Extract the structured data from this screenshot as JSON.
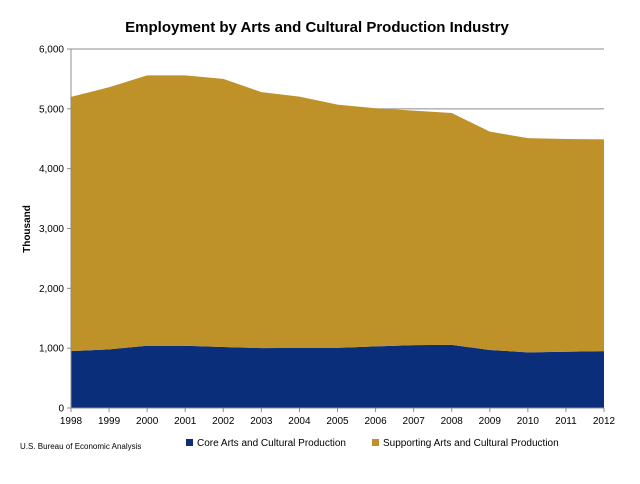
{
  "chart_data": {
    "type": "area",
    "stacked": true,
    "title": "Employment by Arts and Cultural Production Industry",
    "xlabel": "",
    "ylabel": "Thousand",
    "x": [
      "1998",
      "1999",
      "2000",
      "2001",
      "2002",
      "2003",
      "2004",
      "2005",
      "2006",
      "2007",
      "2008",
      "2009",
      "2010",
      "2011",
      "2012"
    ],
    "ylim": [
      0,
      6000
    ],
    "yticks": [
      "0",
      "1,000",
      "2,000",
      "3,000",
      "4,000",
      "5,000",
      "6,000"
    ],
    "grid": true,
    "legend_position": "bottom",
    "series": [
      {
        "name": "Core Arts and Cultural Production",
        "color": "#0b2e7a",
        "values": [
          950,
          980,
          1040,
          1040,
          1020,
          1000,
          1005,
          1005,
          1030,
          1050,
          1055,
          970,
          930,
          940,
          950
        ]
      },
      {
        "name": "Supporting Arts and Cultural Production",
        "color": "#bf9129",
        "values": [
          4250,
          4380,
          4520,
          4520,
          4480,
          4280,
          4200,
          4065,
          3980,
          3920,
          3875,
          3650,
          3580,
          3555,
          3540
        ]
      }
    ],
    "source_note": "U.S. Bureau of Economic Analysis"
  }
}
